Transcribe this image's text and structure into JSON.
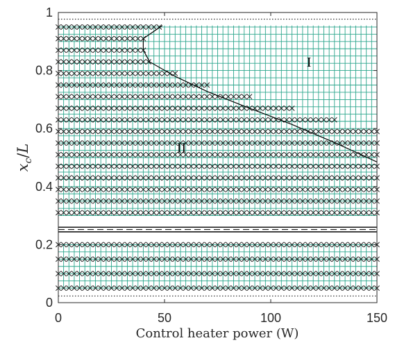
{
  "chart_data": {
    "type": "scatter",
    "xlabel": "Control heater power (W)",
    "ylabel": "x_c/L",
    "xlim": [
      0,
      150
    ],
    "ylim": [
      0,
      1
    ],
    "x_ticks": [
      "0",
      "50",
      "100",
      "150"
    ],
    "y_ticks": [
      "0",
      "0.2",
      "0.4",
      "0.6",
      "0.8",
      "1"
    ],
    "grid": false,
    "grid_color": "#2aa58c",
    "marker": "x",
    "marker_color": "#1a1a1a",
    "region_labels": [
      {
        "text": "I",
        "x": 118,
        "y": 0.83
      },
      {
        "text": "II",
        "x": 58,
        "y": 0.535
      }
    ],
    "boundary": {
      "x": [
        49,
        40,
        40,
        43,
        55,
        70,
        90,
        110,
        130,
        150
      ],
      "y": [
        0.955,
        0.91,
        0.87,
        0.83,
        0.78,
        0.728,
        0.67,
        0.614,
        0.552,
        0.485
      ]
    },
    "horizontal_lines": [
      {
        "y": 0.977,
        "style": "dotted"
      },
      {
        "y": 0.26,
        "style": "solid"
      },
      {
        "y": 0.252,
        "style": "dashed"
      },
      {
        "y": 0.244,
        "style": "solid"
      },
      {
        "y": 0.023,
        "style": "dotted"
      }
    ],
    "grid_region": {
      "xlim": [
        0,
        150
      ],
      "ylim_upper": [
        0.3,
        0.955
      ],
      "ylim_lower": [
        0.05,
        0.2
      ],
      "x_step": 2.5,
      "y_step": 0.025
    },
    "x_marker_rows": {
      "y": [
        0.95,
        0.91,
        0.87,
        0.83,
        0.79,
        0.75,
        0.71,
        0.67,
        0.63,
        0.59,
        0.55,
        0.51,
        0.47,
        0.43,
        0.39,
        0.35,
        0.31,
        0.2,
        0.15,
        0.1,
        0.05
      ],
      "x_step": 2.5,
      "x_end": [
        49,
        40,
        40,
        43,
        55,
        70,
        90,
        110,
        130,
        150,
        150,
        150,
        150,
        150,
        150,
        150,
        150,
        150,
        150,
        150,
        150
      ]
    }
  }
}
